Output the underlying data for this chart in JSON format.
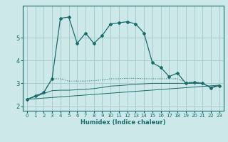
{
  "xlabel": "Humidex (Indice chaleur)",
  "bg_color": "#cce8e8",
  "grid_color": "#aacccc",
  "line_color": "#1a6b6b",
  "xlim": [
    -0.5,
    23.5
  ],
  "ylim": [
    1.8,
    6.4
  ],
  "yticks": [
    2,
    3,
    4,
    5
  ],
  "xticks": [
    0,
    1,
    2,
    3,
    4,
    5,
    6,
    7,
    8,
    9,
    10,
    11,
    12,
    13,
    14,
    15,
    16,
    17,
    18,
    19,
    20,
    21,
    22,
    23
  ],
  "series1_x": [
    0,
    1,
    2,
    3,
    4,
    5,
    6,
    7,
    8,
    9,
    10,
    11,
    12,
    13,
    14,
    15,
    16,
    17,
    18,
    19,
    20,
    21,
    22,
    23
  ],
  "series1_y": [
    2.3,
    2.45,
    2.6,
    3.2,
    5.85,
    5.9,
    4.75,
    5.2,
    4.75,
    5.1,
    5.6,
    5.65,
    5.7,
    5.6,
    5.2,
    3.9,
    3.7,
    3.3,
    3.45,
    3.0,
    3.05,
    3.0,
    2.8,
    2.9
  ],
  "series2_x": [
    0,
    1,
    2,
    3,
    4,
    5,
    6,
    7,
    8,
    9,
    10,
    11,
    12,
    13,
    14,
    15,
    16,
    17,
    18,
    19,
    20,
    21,
    22,
    23
  ],
  "series2_y": [
    2.3,
    2.45,
    2.6,
    3.2,
    3.2,
    3.1,
    3.1,
    3.1,
    3.12,
    3.15,
    3.2,
    3.2,
    3.22,
    3.22,
    3.2,
    3.2,
    3.2,
    3.2,
    3.2,
    3.05,
    3.05,
    3.0,
    2.83,
    2.92
  ],
  "series3_x": [
    0,
    1,
    2,
    3,
    4,
    5,
    6,
    7,
    8,
    9,
    10,
    11,
    12,
    13,
    14,
    15,
    16,
    17,
    18,
    19,
    20,
    21,
    22,
    23
  ],
  "series3_y": [
    2.3,
    2.42,
    2.55,
    2.68,
    2.7,
    2.7,
    2.72,
    2.74,
    2.77,
    2.82,
    2.88,
    2.9,
    2.93,
    2.96,
    2.98,
    3.0,
    3.0,
    3.0,
    3.0,
    3.0,
    3.0,
    3.0,
    2.83,
    2.92
  ],
  "series4_x": [
    0,
    23
  ],
  "series4_y": [
    2.3,
    2.92
  ]
}
